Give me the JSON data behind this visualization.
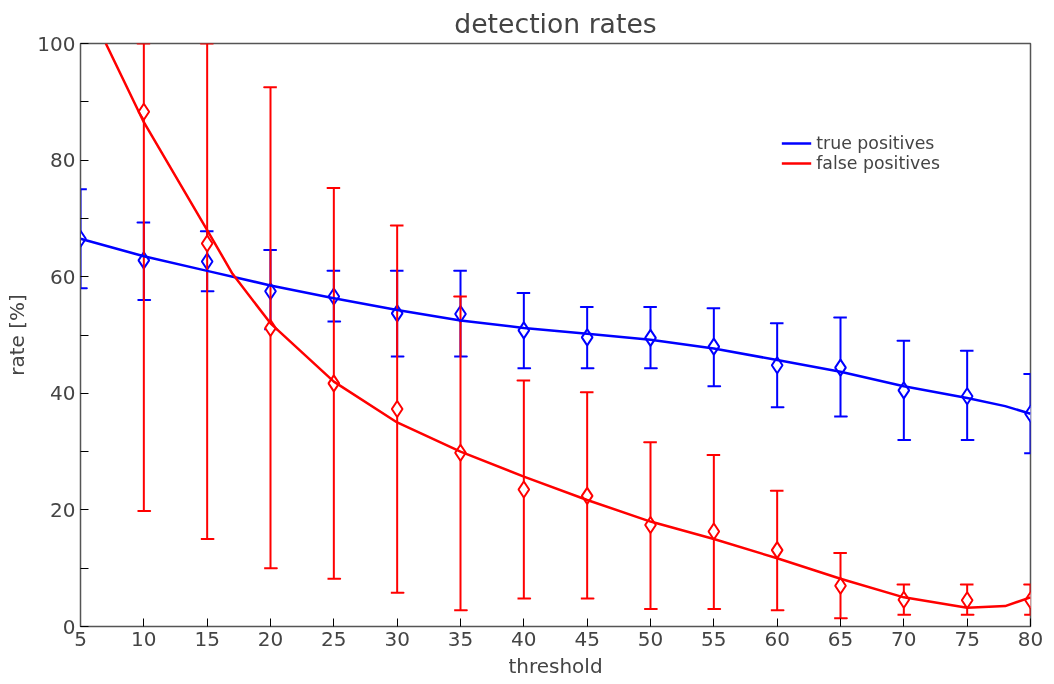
{
  "chart_data": {
    "type": "scatter",
    "title": "detection rates",
    "xlabel": "threshold",
    "ylabel": "rate [%]",
    "x": [
      5,
      10,
      15,
      20,
      25,
      30,
      35,
      40,
      45,
      50,
      55,
      60,
      65,
      70,
      75,
      80
    ],
    "xlim": [
      5,
      80
    ],
    "ylim": [
      0,
      100
    ],
    "xticks": [
      5,
      10,
      15,
      20,
      25,
      30,
      35,
      40,
      45,
      50,
      55,
      60,
      65,
      70,
      75,
      80
    ],
    "yticks": [
      0,
      {
        "value": 10,
        "label": null
      },
      20,
      {
        "value": 30,
        "label": null
      },
      40,
      {
        "value": 50,
        "label": null
      },
      60,
      {
        "value": 70,
        "label": null
      },
      80,
      {
        "value": 90,
        "label": null
      },
      100
    ],
    "legend": "top right",
    "marker": "diamond",
    "series": [
      {
        "color": "#0000ff",
        "values": [
          66.5,
          62.8,
          62.6,
          57.5,
          56.6,
          53.7,
          53.6,
          50.8,
          49.6,
          49.5,
          48,
          44.8,
          44.4,
          40.5,
          39.5,
          36.5
        ],
        "errors": [
          [
            58,
            75
          ],
          [
            56,
            69.3
          ],
          [
            57.5,
            67.8
          ],
          [
            51,
            64.6
          ],
          [
            52.3,
            61
          ],
          [
            46.3,
            61
          ],
          [
            46.3,
            61
          ],
          [
            44.3,
            57.2
          ],
          [
            44.3,
            54.8
          ],
          [
            44.3,
            54.8
          ],
          [
            41.2,
            54.6
          ],
          [
            37.6,
            52
          ],
          [
            36,
            53
          ],
          [
            32,
            49
          ],
          [
            32,
            47.3
          ],
          [
            29.7,
            43.3
          ]
        ]
      },
      {
        "color": "#ff0000",
        "values": [
          null,
          88.3,
          65.7,
          51.2,
          41.7,
          37.3,
          29.8,
          23.5,
          22.4,
          17.4,
          16.3,
          13.1,
          7,
          4.6,
          4.5,
          4.5
        ],
        "errors": [
          null,
          [
            19.8,
            100
          ],
          [
            15,
            100
          ],
          [
            10,
            92.5
          ],
          [
            8.2,
            75.2
          ],
          [
            5.8,
            68.8
          ],
          [
            2.8,
            56.6
          ],
          [
            4.8,
            42.2
          ],
          [
            4.8,
            40.2
          ],
          [
            3,
            31.6
          ],
          [
            3,
            29.4
          ],
          [
            2.8,
            23.3
          ],
          [
            1.4,
            12.6
          ],
          [
            2,
            7.2
          ],
          [
            2,
            7.2
          ],
          [
            2,
            7.2
          ]
        ]
      },
      {
        "type": "line",
        "name": "true positives",
        "color": "#0000ff",
        "marker": "none",
        "x": [
          5,
          10,
          15,
          20,
          25,
          30,
          35,
          40,
          45,
          50,
          55,
          60,
          65,
          70,
          75,
          78,
          80
        ],
        "values": [
          66.5,
          63.5,
          61,
          58.5,
          56.3,
          54.3,
          52.5,
          51.2,
          50.2,
          49.2,
          47.7,
          45.7,
          43.7,
          41.2,
          39.2,
          37.8,
          36.5
        ]
      },
      {
        "type": "line",
        "name": "false positives",
        "color": "#ff0000",
        "marker": "none",
        "x": [
          7,
          10,
          15,
          17,
          20,
          25,
          30,
          35,
          40,
          45,
          50,
          55,
          60,
          65,
          70,
          75,
          78,
          80
        ],
        "values": [
          100,
          86.5,
          68,
          60.5,
          52,
          42,
          35,
          30,
          25.7,
          21.7,
          18,
          15,
          11.7,
          8.2,
          5,
          3.2,
          3.5,
          5
        ]
      }
    ]
  }
}
